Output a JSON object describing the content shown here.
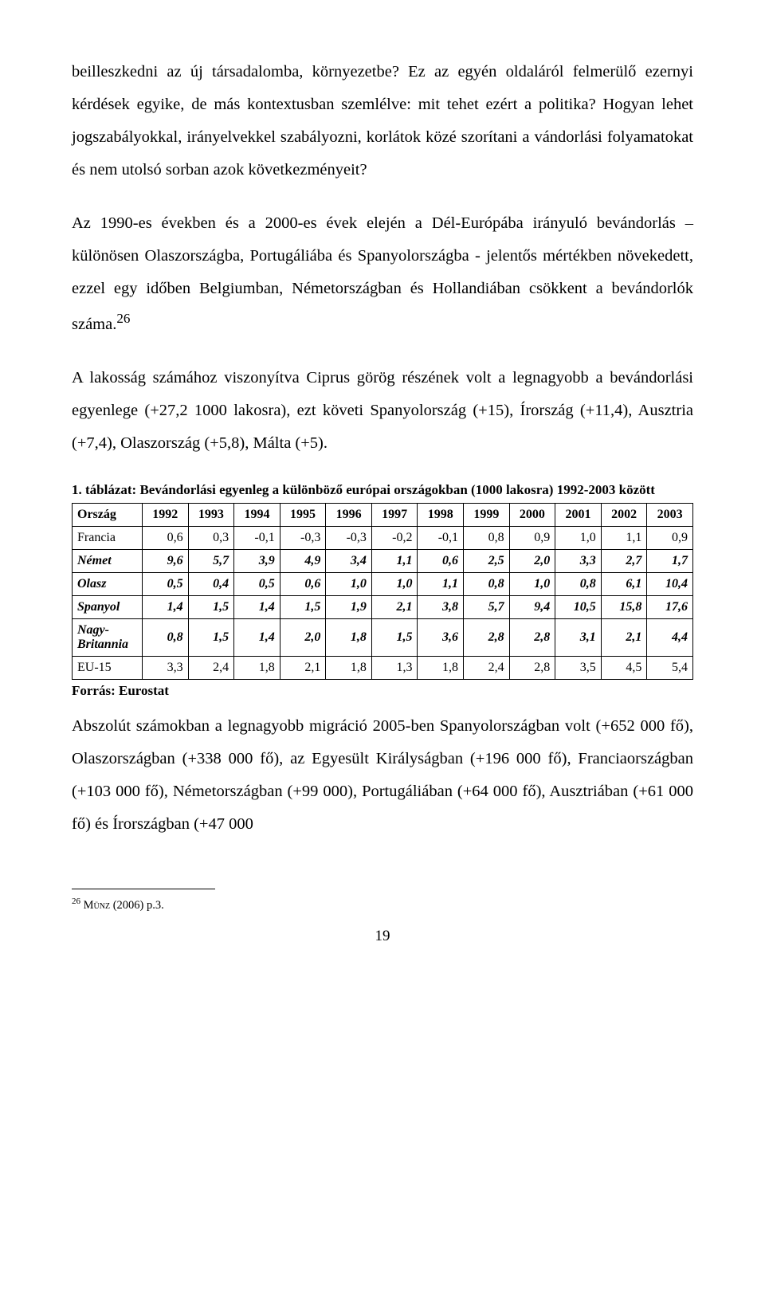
{
  "paragraphs": {
    "p1": "beilleszkedni az új társadalomba, környezetbe? Ez az egyén oldaláról felmerülő ezernyi kérdések egyike, de más kontextusban szemlélve: mit tehet ezért a politika? Hogyan lehet jogszabályokkal, irányelvekkel szabályozni, korlátok közé szorítani a vándorlási folyamatokat és nem utolsó sorban azok következményeit?",
    "p2_a": "Az 1990-es években és a 2000-es évek elején a Dél-Európába irányuló bevándorlás – különösen Olaszországba, Portugáliába és Spanyolországba - jelentős mértékben növekedett, ezzel egy időben Belgiumban, Németországban és Hollandiában csökkent a bevándorlók száma.",
    "p2_sup": "26",
    "p3": "A lakosság számához viszonyítva Ciprus görög részének volt a legnagyobb a bevándorlási egyenlege (+27,2 1000 lakosra), ezt követi Spanyolország (+15), Írország (+11,4), Ausztria (+7,4), Olaszország (+5,8), Málta (+5).",
    "p4": "Abszolút számokban a legnagyobb migráció 2005-ben Spanyolországban volt (+652 000 fő), Olaszországban (+338 000 fő), az Egyesült Királyságban (+196 000 fő), Franciaországban (+103 000 fő), Németországban (+99 000), Portugáliában (+64 000 fő), Ausztriában (+61 000 fő) és Írországban (+47 000"
  },
  "table": {
    "caption": "1. táblázat: Bevándorlási egyenleg a különböző európai országokban (1000 lakosra) 1992-2003 között",
    "header_label": "Ország",
    "years": [
      "1992",
      "1993",
      "1994",
      "1995",
      "1996",
      "1997",
      "1998",
      "1999",
      "2000",
      "2001",
      "2002",
      "2003"
    ],
    "rows": [
      {
        "label": "Francia",
        "style": "plain",
        "cells": [
          "0,6",
          "0,3",
          "-0,1",
          "-0,3",
          "-0,3",
          "-0,2",
          "-0,1",
          "0,8",
          "0,9",
          "1,0",
          "1,1",
          "0,9"
        ]
      },
      {
        "label": "Német",
        "style": "bold",
        "cells": [
          "9,6",
          "5,7",
          "3,9",
          "4,9",
          "3,4",
          "1,1",
          "0,6",
          "2,5",
          "2,0",
          "3,3",
          "2,7",
          "1,7"
        ]
      },
      {
        "label": "Olasz",
        "style": "bold",
        "cells": [
          "0,5",
          "0,4",
          "0,5",
          "0,6",
          "1,0",
          "1,0",
          "1,1",
          "0,8",
          "1,0",
          "0,8",
          "6,1",
          "10,4"
        ]
      },
      {
        "label": "Spanyol",
        "style": "bold",
        "cells": [
          "1,4",
          "1,5",
          "1,4",
          "1,5",
          "1,9",
          "2,1",
          "3,8",
          "5,7",
          "9,4",
          "10,5",
          "15,8",
          "17,6"
        ]
      },
      {
        "label": "Nagy-Britannia",
        "style": "bold",
        "cells": [
          "0,8",
          "1,5",
          "1,4",
          "2,0",
          "1,8",
          "1,5",
          "3,6",
          "2,8",
          "2,8",
          "3,1",
          "2,1",
          "4,4"
        ]
      },
      {
        "label": "EU-15",
        "style": "plain",
        "cells": [
          "3,3",
          "2,4",
          "1,8",
          "2,1",
          "1,8",
          "1,3",
          "1,8",
          "2,4",
          "2,8",
          "3,5",
          "4,5",
          "5,4"
        ]
      }
    ],
    "source": "Forrás: Eurostat"
  },
  "footnote": {
    "num": "26",
    "text_author": "Münz",
    "text_rest": " (2006) p.3."
  },
  "page_number": "19"
}
